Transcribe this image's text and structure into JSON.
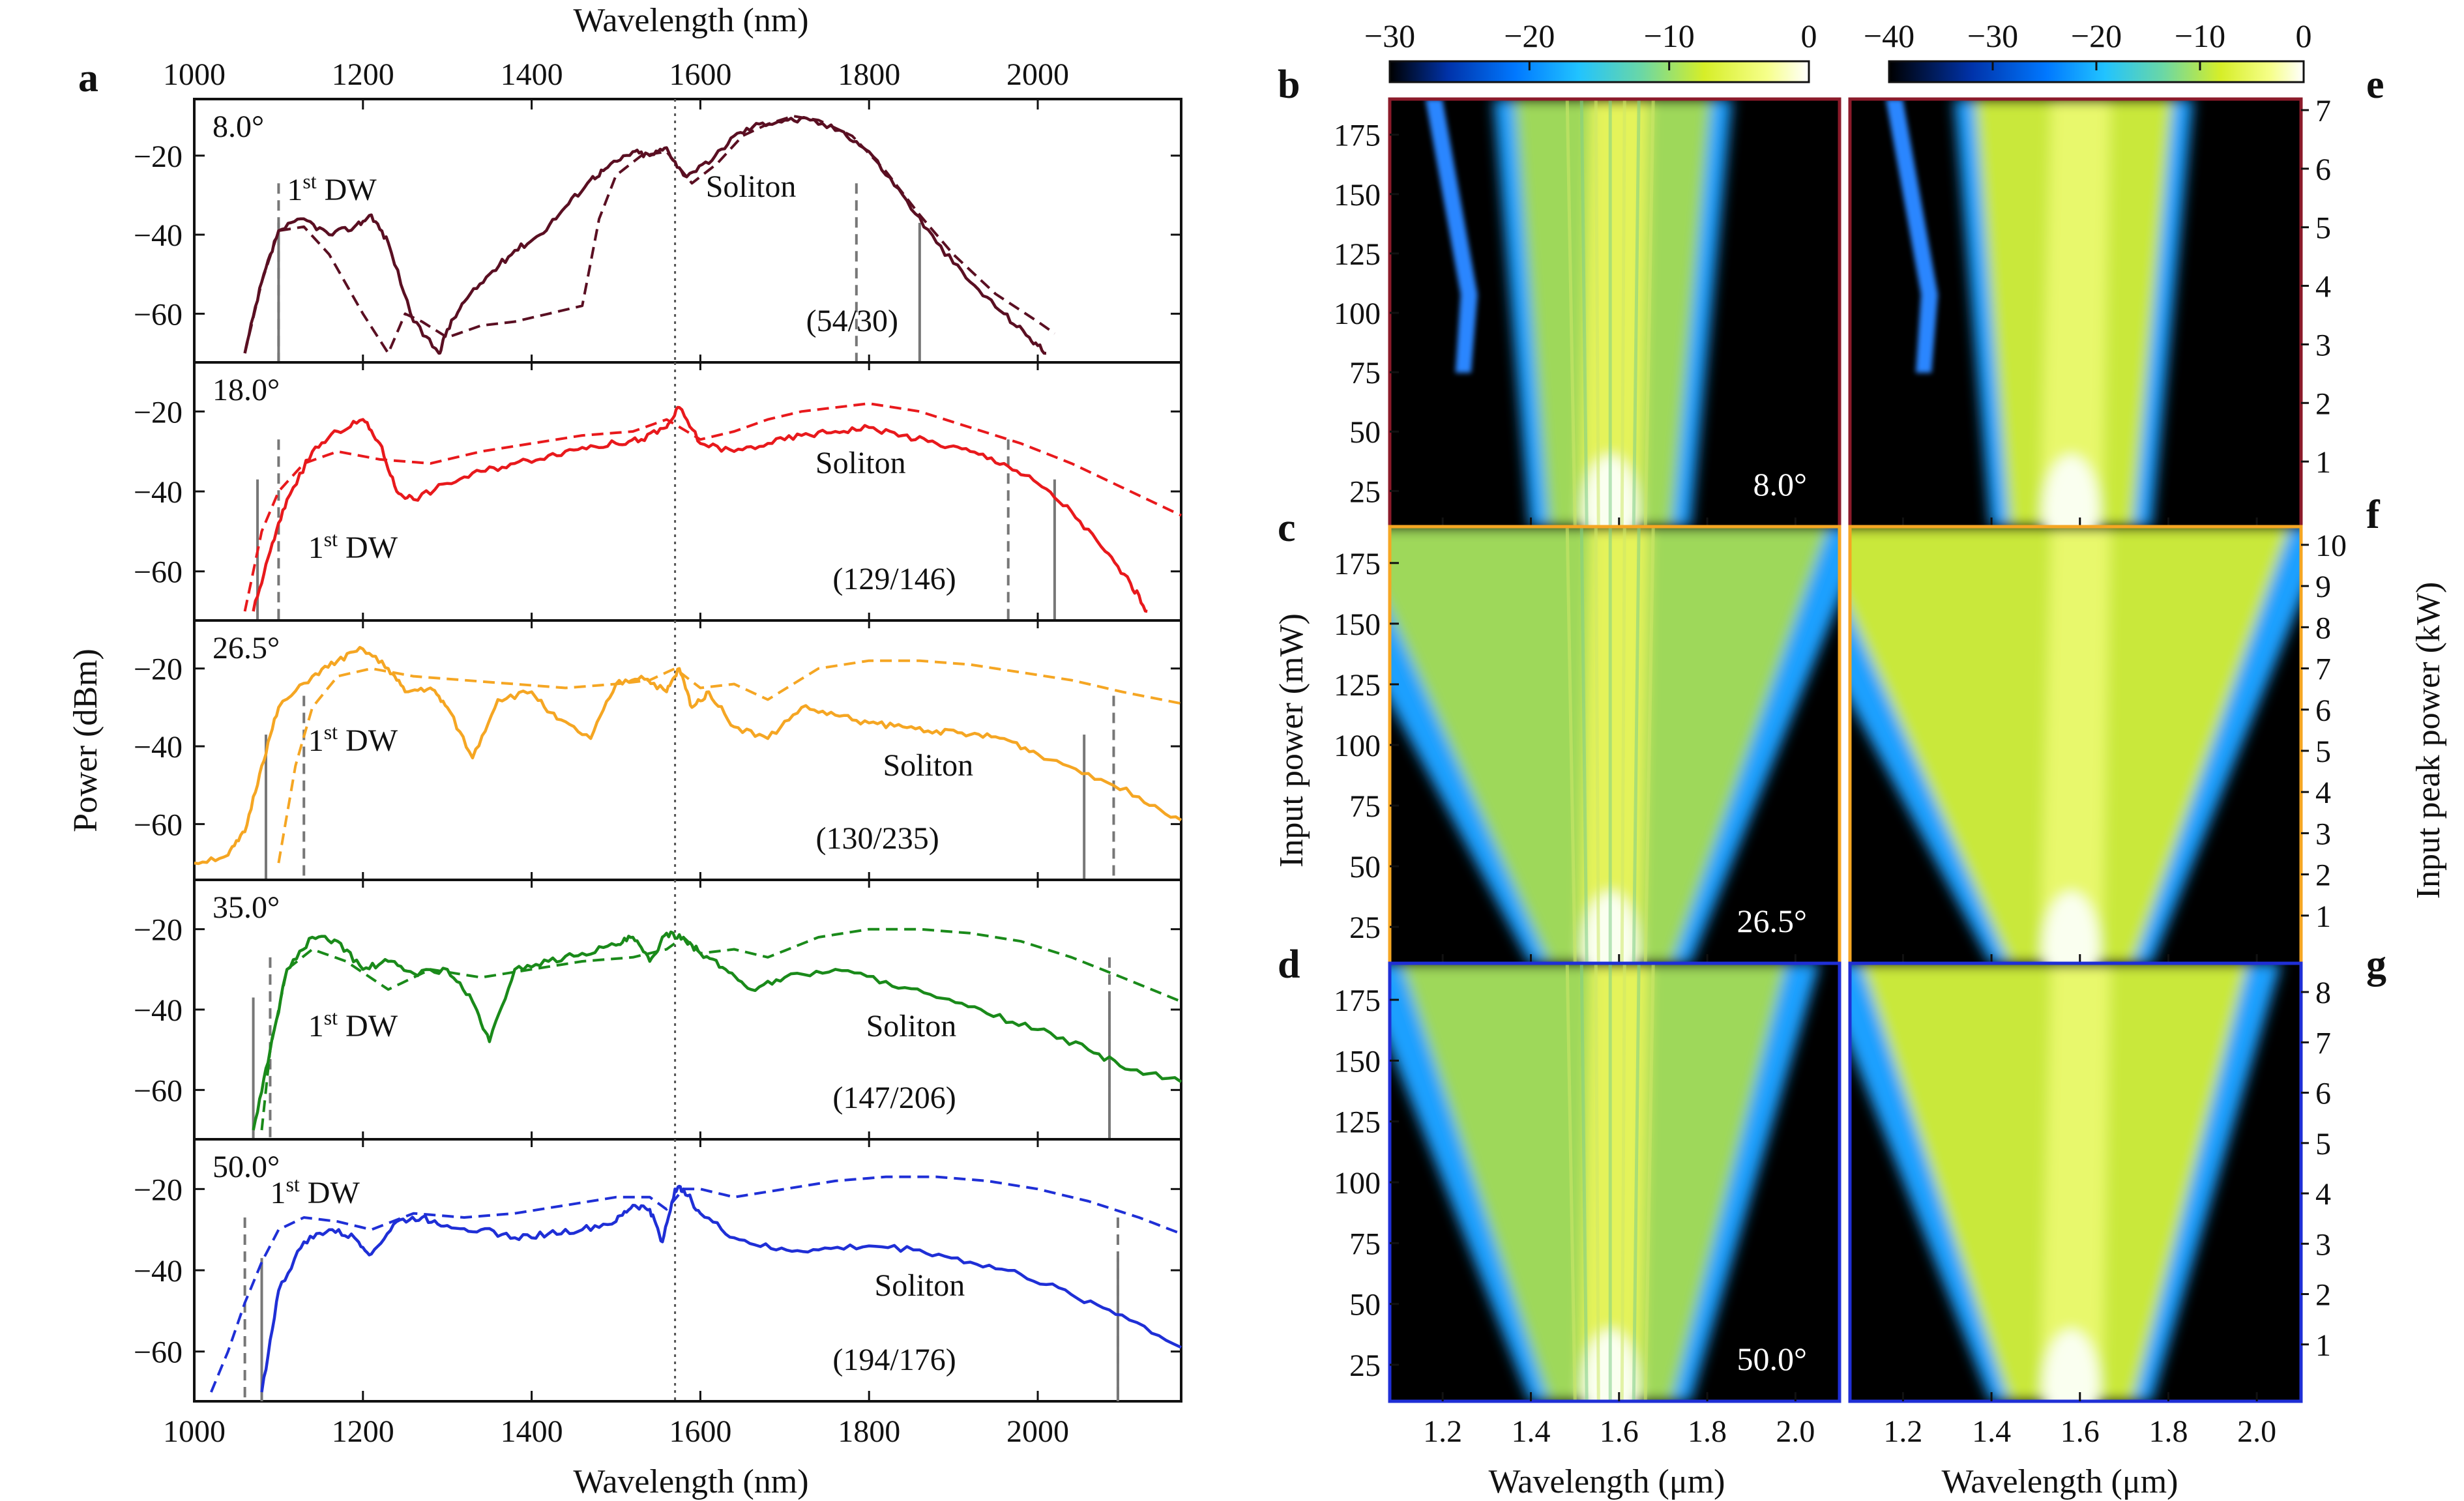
{
  "figure": {
    "panel_letters": [
      "a",
      "b",
      "c",
      "d",
      "e",
      "f",
      "g"
    ]
  },
  "chart_data": [
    {
      "panel": "a",
      "type": "line",
      "xlabel": "Wavelength (nm)",
      "xlabel_top": "Wavelength (nm)",
      "ylabel": "Power (dBm)",
      "xlim": [
        1000,
        2170
      ],
      "xticks": [
        1000,
        1200,
        1400,
        1600,
        1800,
        2000
      ],
      "yticks": [
        -20,
        -40,
        -60
      ],
      "pump_wavelength_nm": 1570,
      "subplots": [
        {
          "angle": "8.0°",
          "color": "#5a0f22",
          "ylim": [
            -70,
            -8
          ],
          "dw_label": "1",
          "dw_sup": "st",
          "dw_tail": " DW",
          "soliton_label": "Soliton",
          "ratio": "(54/30)",
          "solid_markers_nm": [
            1100,
            1860
          ],
          "dashed_markers_nm": [
            1100,
            1785
          ],
          "measured": {
            "x": [
              1060,
              1080,
              1100,
              1130,
              1160,
              1190,
              1210,
              1230,
              1260,
              1290,
              1300,
              1320,
              1350,
              1380,
              1410,
              1440,
              1470,
              1490,
              1520,
              1540,
              1560,
              1580,
              1610,
              1640,
              1670,
              1700,
              1730,
              1770,
              1800,
              1840,
              1880,
              1920,
              1960,
              1990,
              2010
            ],
            "y": [
              -70,
              -52,
              -39,
              -36,
              -40,
              -38,
              -35,
              -42,
              -62,
              -70,
              -64,
              -57,
              -50,
              -44,
              -40,
              -33,
              -26,
              -23,
              -19,
              -20,
              -18,
              -25,
              -22,
              -15,
              -12,
              -11,
              -11,
              -14,
              -19,
              -30,
              -42,
              -52,
              -60,
              -66,
              -70
            ]
          },
          "simulated": {
            "x": [
              1060,
              1080,
              1100,
              1130,
              1160,
              1200,
              1230,
              1250,
              1270,
              1300,
              1340,
              1380,
              1420,
              1460,
              1480,
              1500,
              1530,
              1560,
              1590,
              1620,
              1650,
              1680,
              1710,
              1740,
              1780,
              1820,
              1860,
              1900,
              1950,
              2000,
              2020
            ],
            "y": [
              -70,
              -52,
              -39,
              -38,
              -45,
              -60,
              -70,
              -60,
              -62,
              -66,
              -63,
              -62,
              -60,
              -58,
              -36,
              -25,
              -20,
              -19,
              -27,
              -22,
              -15,
              -12,
              -10,
              -11,
              -15,
              -24,
              -35,
              -45,
              -55,
              -62,
              -65
            ]
          }
        },
        {
          "angle": "18.0°",
          "color": "#e8191c",
          "ylim": [
            -70,
            -10
          ],
          "dw_label": "1",
          "dw_sup": "st",
          "dw_tail": " DW",
          "soliton_label": "Soliton",
          "ratio": "(129/146)",
          "solid_markers_nm": [
            1075,
            2020
          ],
          "dashed_markers_nm": [
            1100,
            1965
          ],
          "measured": {
            "x": [
              1070,
              1090,
              1110,
              1140,
              1170,
              1200,
              1220,
              1240,
              1260,
              1300,
              1340,
              1380,
              1420,
              1460,
              1500,
              1530,
              1560,
              1575,
              1600,
              1640,
              1680,
              1720,
              1760,
              1800,
              1840,
              1880,
              1920,
              1960,
              2000,
              2040,
              2080,
              2110,
              2130
            ],
            "y": [
              -70,
              -55,
              -42,
              -30,
              -25,
              -22,
              -28,
              -40,
              -42,
              -38,
              -35,
              -33,
              -31,
              -29,
              -28,
              -27,
              -24,
              -19,
              -28,
              -30,
              -28,
              -26,
              -25,
              -24,
              -26,
              -28,
              -30,
              -33,
              -38,
              -45,
              -55,
              -63,
              -70
            ]
          },
          "simulated": {
            "x": [
              1060,
              1080,
              1100,
              1130,
              1170,
              1220,
              1280,
              1340,
              1400,
              1460,
              1520,
              1560,
              1600,
              1640,
              1680,
              1720,
              1760,
              1800,
              1860,
              1920,
              1980,
              2040,
              2100,
              2170
            ],
            "y": [
              -70,
              -50,
              -40,
              -33,
              -30,
              -32,
              -33,
              -30,
              -28,
              -26,
              -25,
              -22,
              -27,
              -25,
              -22,
              -20,
              -19,
              -18,
              -20,
              -24,
              -28,
              -33,
              -39,
              -46
            ]
          }
        },
        {
          "angle": "26.5°",
          "color": "#f5a623",
          "ylim": [
            -72,
            -10
          ],
          "dw_label": "1",
          "dw_sup": "st",
          "dw_tail": " DW",
          "soliton_label": "Soliton",
          "ratio": "(130/235)",
          "solid_markers_nm": [
            1085,
            2055
          ],
          "dashed_markers_nm": [
            1130,
            2090
          ],
          "measured": {
            "x": [
              1000,
              1040,
              1060,
              1080,
              1100,
              1140,
              1170,
              1200,
              1230,
              1250,
              1280,
              1300,
              1330,
              1360,
              1400,
              1430,
              1470,
              1500,
              1530,
              1560,
              1575,
              1590,
              1610,
              1640,
              1680,
              1720,
              1760,
              1800,
              1840,
              1880,
              1920,
              1960,
              2000,
              2060,
              2120,
              2170
            ],
            "y": [
              -70,
              -68,
              -62,
              -45,
              -30,
              -22,
              -18,
              -15,
              -20,
              -26,
              -25,
              -30,
              -43,
              -28,
              -26,
              -33,
              -38,
              -24,
              -22,
              -26,
              -20,
              -30,
              -26,
              -35,
              -38,
              -30,
              -32,
              -34,
              -35,
              -36,
              -37,
              -38,
              -42,
              -47,
              -53,
              -59
            ]
          },
          "simulated": {
            "x": [
              1100,
              1120,
              1140,
              1170,
              1210,
              1260,
              1320,
              1380,
              1440,
              1500,
              1540,
              1570,
              1600,
              1640,
              1680,
              1740,
              1800,
              1860,
              1920,
              1980,
              2040,
              2100,
              2170
            ],
            "y": [
              -70,
              -45,
              -30,
              -22,
              -20,
              -22,
              -23,
              -24,
              -25,
              -24,
              -23,
              -20,
              -25,
              -24,
              -28,
              -20,
              -18,
              -18,
              -19,
              -21,
              -23,
              -26,
              -29
            ]
          }
        },
        {
          "angle": "35.0°",
          "color": "#1a8a1a",
          "ylim": [
            -70,
            -10
          ],
          "dw_label": "1",
          "dw_sup": "st",
          "dw_tail": " DW",
          "soliton_label": "Soliton",
          "ratio": "(147/206)",
          "solid_markers_nm": [
            1070,
            2085
          ],
          "dashed_markers_nm": [
            1090,
            2085
          ],
          "measured": {
            "x": [
              1070,
              1090,
              1110,
              1140,
              1170,
              1200,
              1230,
              1260,
              1300,
              1330,
              1350,
              1380,
              1420,
              1460,
              1500,
              1520,
              1540,
              1560,
              1580,
              1600,
              1630,
              1660,
              1700,
              1760,
              1820,
              1880,
              1940,
              2000,
              2060,
              2110,
              2170
            ],
            "y": [
              -70,
              -50,
              -30,
              -22,
              -23,
              -30,
              -28,
              -31,
              -30,
              -38,
              -48,
              -30,
              -28,
              -26,
              -24,
              -22,
              -28,
              -21,
              -22,
              -26,
              -30,
              -35,
              -32,
              -30,
              -33,
              -37,
              -41,
              -45,
              -50,
              -55,
              -58
            ]
          },
          "simulated": {
            "x": [
              1080,
              1090,
              1110,
              1140,
              1180,
              1230,
              1280,
              1340,
              1400,
              1460,
              1520,
              1560,
              1580,
              1600,
              1640,
              1680,
              1740,
              1800,
              1860,
              1920,
              1980,
              2040,
              2100,
              2170
            ],
            "y": [
              -70,
              -50,
              -30,
              -25,
              -28,
              -35,
              -30,
              -32,
              -30,
              -28,
              -27,
              -25,
              -22,
              -26,
              -25,
              -27,
              -22,
              -20,
              -20,
              -21,
              -23,
              -27,
              -32,
              -38
            ]
          }
        },
        {
          "angle": "50.0°",
          "color": "#1f2fd6",
          "ylim": [
            -70,
            -10
          ],
          "dw_label": "1",
          "dw_sup": "st",
          "dw_tail": " DW",
          "soliton_label": "Soliton",
          "ratio": "(194/176)",
          "solid_markers_nm": [
            1080,
            2095
          ],
          "dashed_markers_nm": [
            1060,
            2095
          ],
          "measured": {
            "x": [
              1080,
              1100,
              1130,
              1160,
              1190,
              1210,
              1240,
              1270,
              1300,
              1340,
              1380,
              1420,
              1460,
              1500,
              1520,
              1540,
              1555,
              1570,
              1580,
              1600,
              1640,
              1690,
              1740,
              1800,
              1860,
              1920,
              1980,
              2040,
              2100,
              2170
            ],
            "y": [
              -70,
              -45,
              -33,
              -30,
              -32,
              -36,
              -28,
              -27,
              -29,
              -30,
              -32,
              -31,
              -30,
              -28,
              -24,
              -25,
              -33,
              -20,
              -20,
              -26,
              -32,
              -35,
              -35,
              -34,
              -35,
              -38,
              -41,
              -46,
              -51,
              -59
            ]
          },
          "simulated": {
            "x": [
              1020,
              1040,
              1060,
              1080,
              1100,
              1130,
              1170,
              1210,
              1260,
              1320,
              1380,
              1440,
              1500,
              1540,
              1560,
              1580,
              1600,
              1640,
              1700,
              1760,
              1820,
              1880,
              1940,
              2000,
              2060,
              2120,
              2170
            ],
            "y": [
              -70,
              -60,
              -48,
              -38,
              -30,
              -27,
              -28,
              -30,
              -26,
              -27,
              -26,
              -24,
              -22,
              -22,
              -25,
              -20,
              -20,
              -22,
              -20,
              -18,
              -17,
              -17,
              -18,
              -20,
              -23,
              -27,
              -31
            ]
          }
        }
      ]
    },
    {
      "panel": "b-g",
      "type": "heatmap",
      "colorbar_left": {
        "ticks": [
          -30,
          -20,
          -10,
          0
        ],
        "range": [
          -30,
          0
        ],
        "colors": [
          "#000000",
          "#0033aa",
          "#0078ff",
          "#21c3ff",
          "#6ad7a6",
          "#d6ee28",
          "#f6ff8a",
          "#ffffff"
        ]
      },
      "colorbar_right": {
        "ticks": [
          -40,
          -30,
          -20,
          -10,
          0
        ],
        "range": [
          -40,
          0
        ],
        "colors": [
          "#000000",
          "#0033aa",
          "#0078ff",
          "#21c3ff",
          "#6ad7a6",
          "#d6ee28",
          "#f6ff8a",
          "#ffffff"
        ]
      },
      "xlabel": "Wavelength (μm)",
      "xlim": [
        1.08,
        2.1
      ],
      "xticks": [
        "1.2",
        "1.4",
        "1.6",
        "1.8",
        "2.0"
      ],
      "ylabel_left": "Input power (mW)",
      "ylim_left": [
        10,
        190
      ],
      "yticks_left": [
        25,
        50,
        75,
        100,
        125,
        150,
        175
      ],
      "ylabel_right": "Input peak power (kW)",
      "rows": [
        {
          "label": "8.0°",
          "exp_panel": "b",
          "sim_panel": "e",
          "frame_color": "#8b1a2a",
          "right_ticks": [
            1,
            2,
            3,
            4,
            5,
            6,
            7
          ],
          "right_max": 7.3
        },
        {
          "label": "26.5°",
          "exp_panel": "c",
          "sim_panel": "f",
          "frame_color": "#f5a623",
          "right_ticks": [
            1,
            2,
            3,
            4,
            5,
            6,
            7,
            8,
            9,
            10
          ],
          "right_max": 10.6
        },
        {
          "label": "50.0°",
          "exp_panel": "d",
          "sim_panel": "g",
          "frame_color": "#1f2fd6",
          "right_ticks": [
            1,
            2,
            3,
            4,
            5,
            6,
            7,
            8
          ],
          "right_max": 8.7
        }
      ]
    }
  ]
}
